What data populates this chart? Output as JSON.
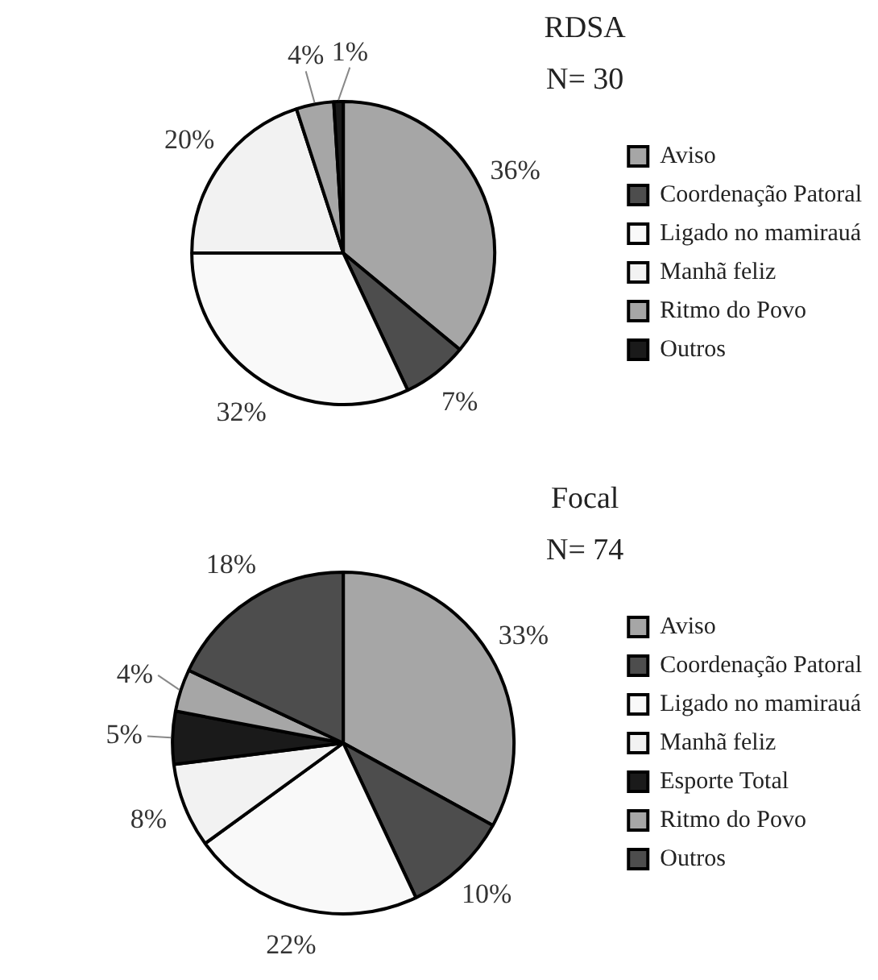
{
  "chart_data": [
    {
      "type": "pie",
      "title": "RDSA",
      "subtitle": "N= 30",
      "categories": [
        "Aviso",
        "Coordenação Patoral",
        "Ligado no mamirauá",
        "Manhã feliz",
        "Ritmo do Povo",
        "Outros"
      ],
      "values": [
        36,
        7,
        32,
        20,
        4,
        1
      ],
      "value_labels": [
        "36%",
        "7%",
        "32%",
        "20%",
        "4%",
        "1%"
      ],
      "colors": [
        "#a6a6a6",
        "#4d4d4d",
        "#f9f9f9",
        "#f2f2f2",
        "#a6a6a6",
        "#1a1a1a"
      ],
      "legend": "right"
    },
    {
      "type": "pie",
      "title": "Focal",
      "subtitle": "N= 74",
      "categories": [
        "Aviso",
        "Coordenação Patoral",
        "Ligado no mamirauá",
        "Manhã feliz",
        "Esporte Total",
        "Ritmo do Povo",
        "Outros"
      ],
      "values": [
        33,
        10,
        22,
        8,
        5,
        4,
        18
      ],
      "value_labels": [
        "33%",
        "10%",
        "22%",
        "8%",
        "5%",
        "4%",
        "18%"
      ],
      "colors": [
        "#a6a6a6",
        "#4d4d4d",
        "#f9f9f9",
        "#f2f2f2",
        "#1a1a1a",
        "#a6a6a6",
        "#4d4d4d"
      ],
      "legend": "right"
    }
  ]
}
